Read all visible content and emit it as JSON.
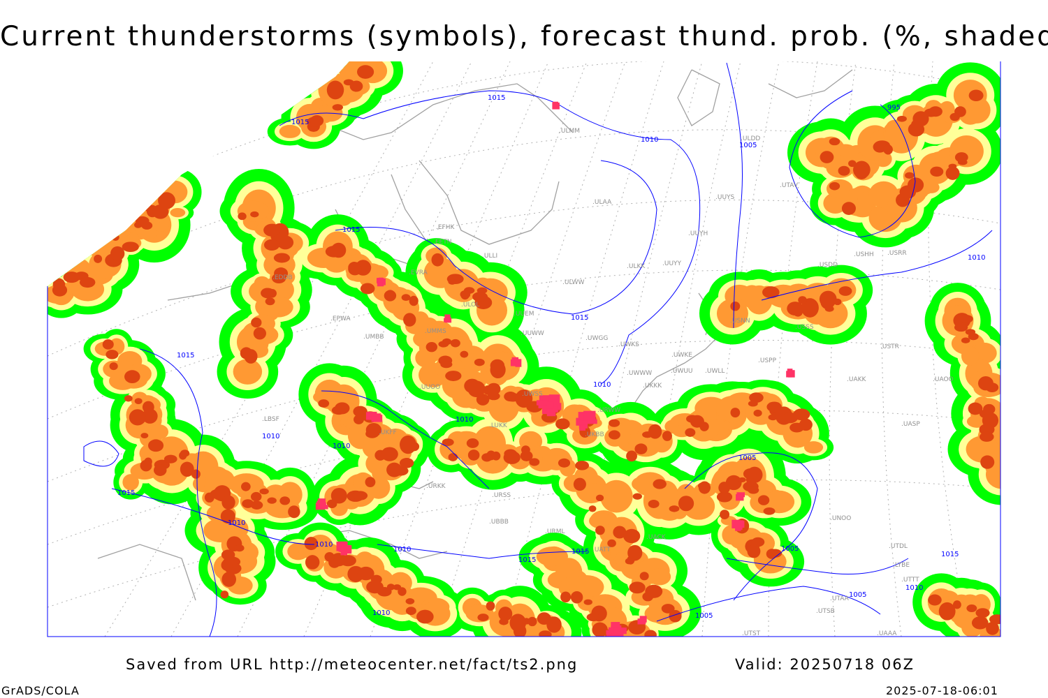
{
  "title": "Current thunderstorms (symbols), forecast thund. prob. (%, shaded)",
  "footer": {
    "source": "Saved from URL http://meteocenter.net/fact/ts2.png",
    "valid": "Valid: 20250718 06Z",
    "software": "GrADS/COLA",
    "timestamp": "2025-07-18-06:01"
  },
  "colors": {
    "prob_low": "#00ff00",
    "prob_mid": "#ffff99",
    "prob_high": "#ff9933",
    "prob_very_high": "#dd4411",
    "thunderstorm_symbol": "#ff3366",
    "isobar": "#0000ff",
    "coastline": "#a0a0a0",
    "station_label": "#909090"
  },
  "isobar_labels": [
    "1015",
    "1015",
    "1015",
    "1010",
    "1005",
    "995",
    "1015",
    "1015",
    "1010",
    "1010",
    "1010",
    "1010",
    "1015",
    "1010",
    "1005",
    "1005",
    "1015",
    "1015",
    "1010",
    "1010",
    "1005",
    "1005",
    "1010",
    "1010",
    "1010",
    "1015"
  ],
  "station_labels": [
    "ULMM",
    "ULDD",
    "ULAA",
    "UUYS",
    "UUYH",
    "UUYY",
    "ULKK",
    "ULWW",
    "EFHK",
    "EETN",
    "EVRA",
    "ULLI",
    "ULOL",
    "UUEM",
    "UMMS",
    "UMBB",
    "EPWA",
    "EDDB",
    "UUWW",
    "UWGG",
    "UWKS",
    "UWKE",
    "UWUU",
    "UWLL",
    "UWWW",
    "UKKK",
    "UUOO",
    "UWSS",
    "URWW",
    "UKBB",
    "LUKK",
    "UKFF",
    "URKK",
    "URSS",
    "UBBB",
    "URML",
    "UATT",
    "UACK",
    "UAKK",
    "UASP",
    "UAOO",
    "UNOO",
    "USTR",
    "USSS",
    "USPP",
    "USNN",
    "USRR",
    "USHH",
    "USDD",
    "UTAV",
    "UTSB",
    "UTAA",
    "UTST",
    "UAAA",
    "UTDL",
    "UTTT",
    "LYBE",
    "LBSF"
  ],
  "legend_note": ""
}
